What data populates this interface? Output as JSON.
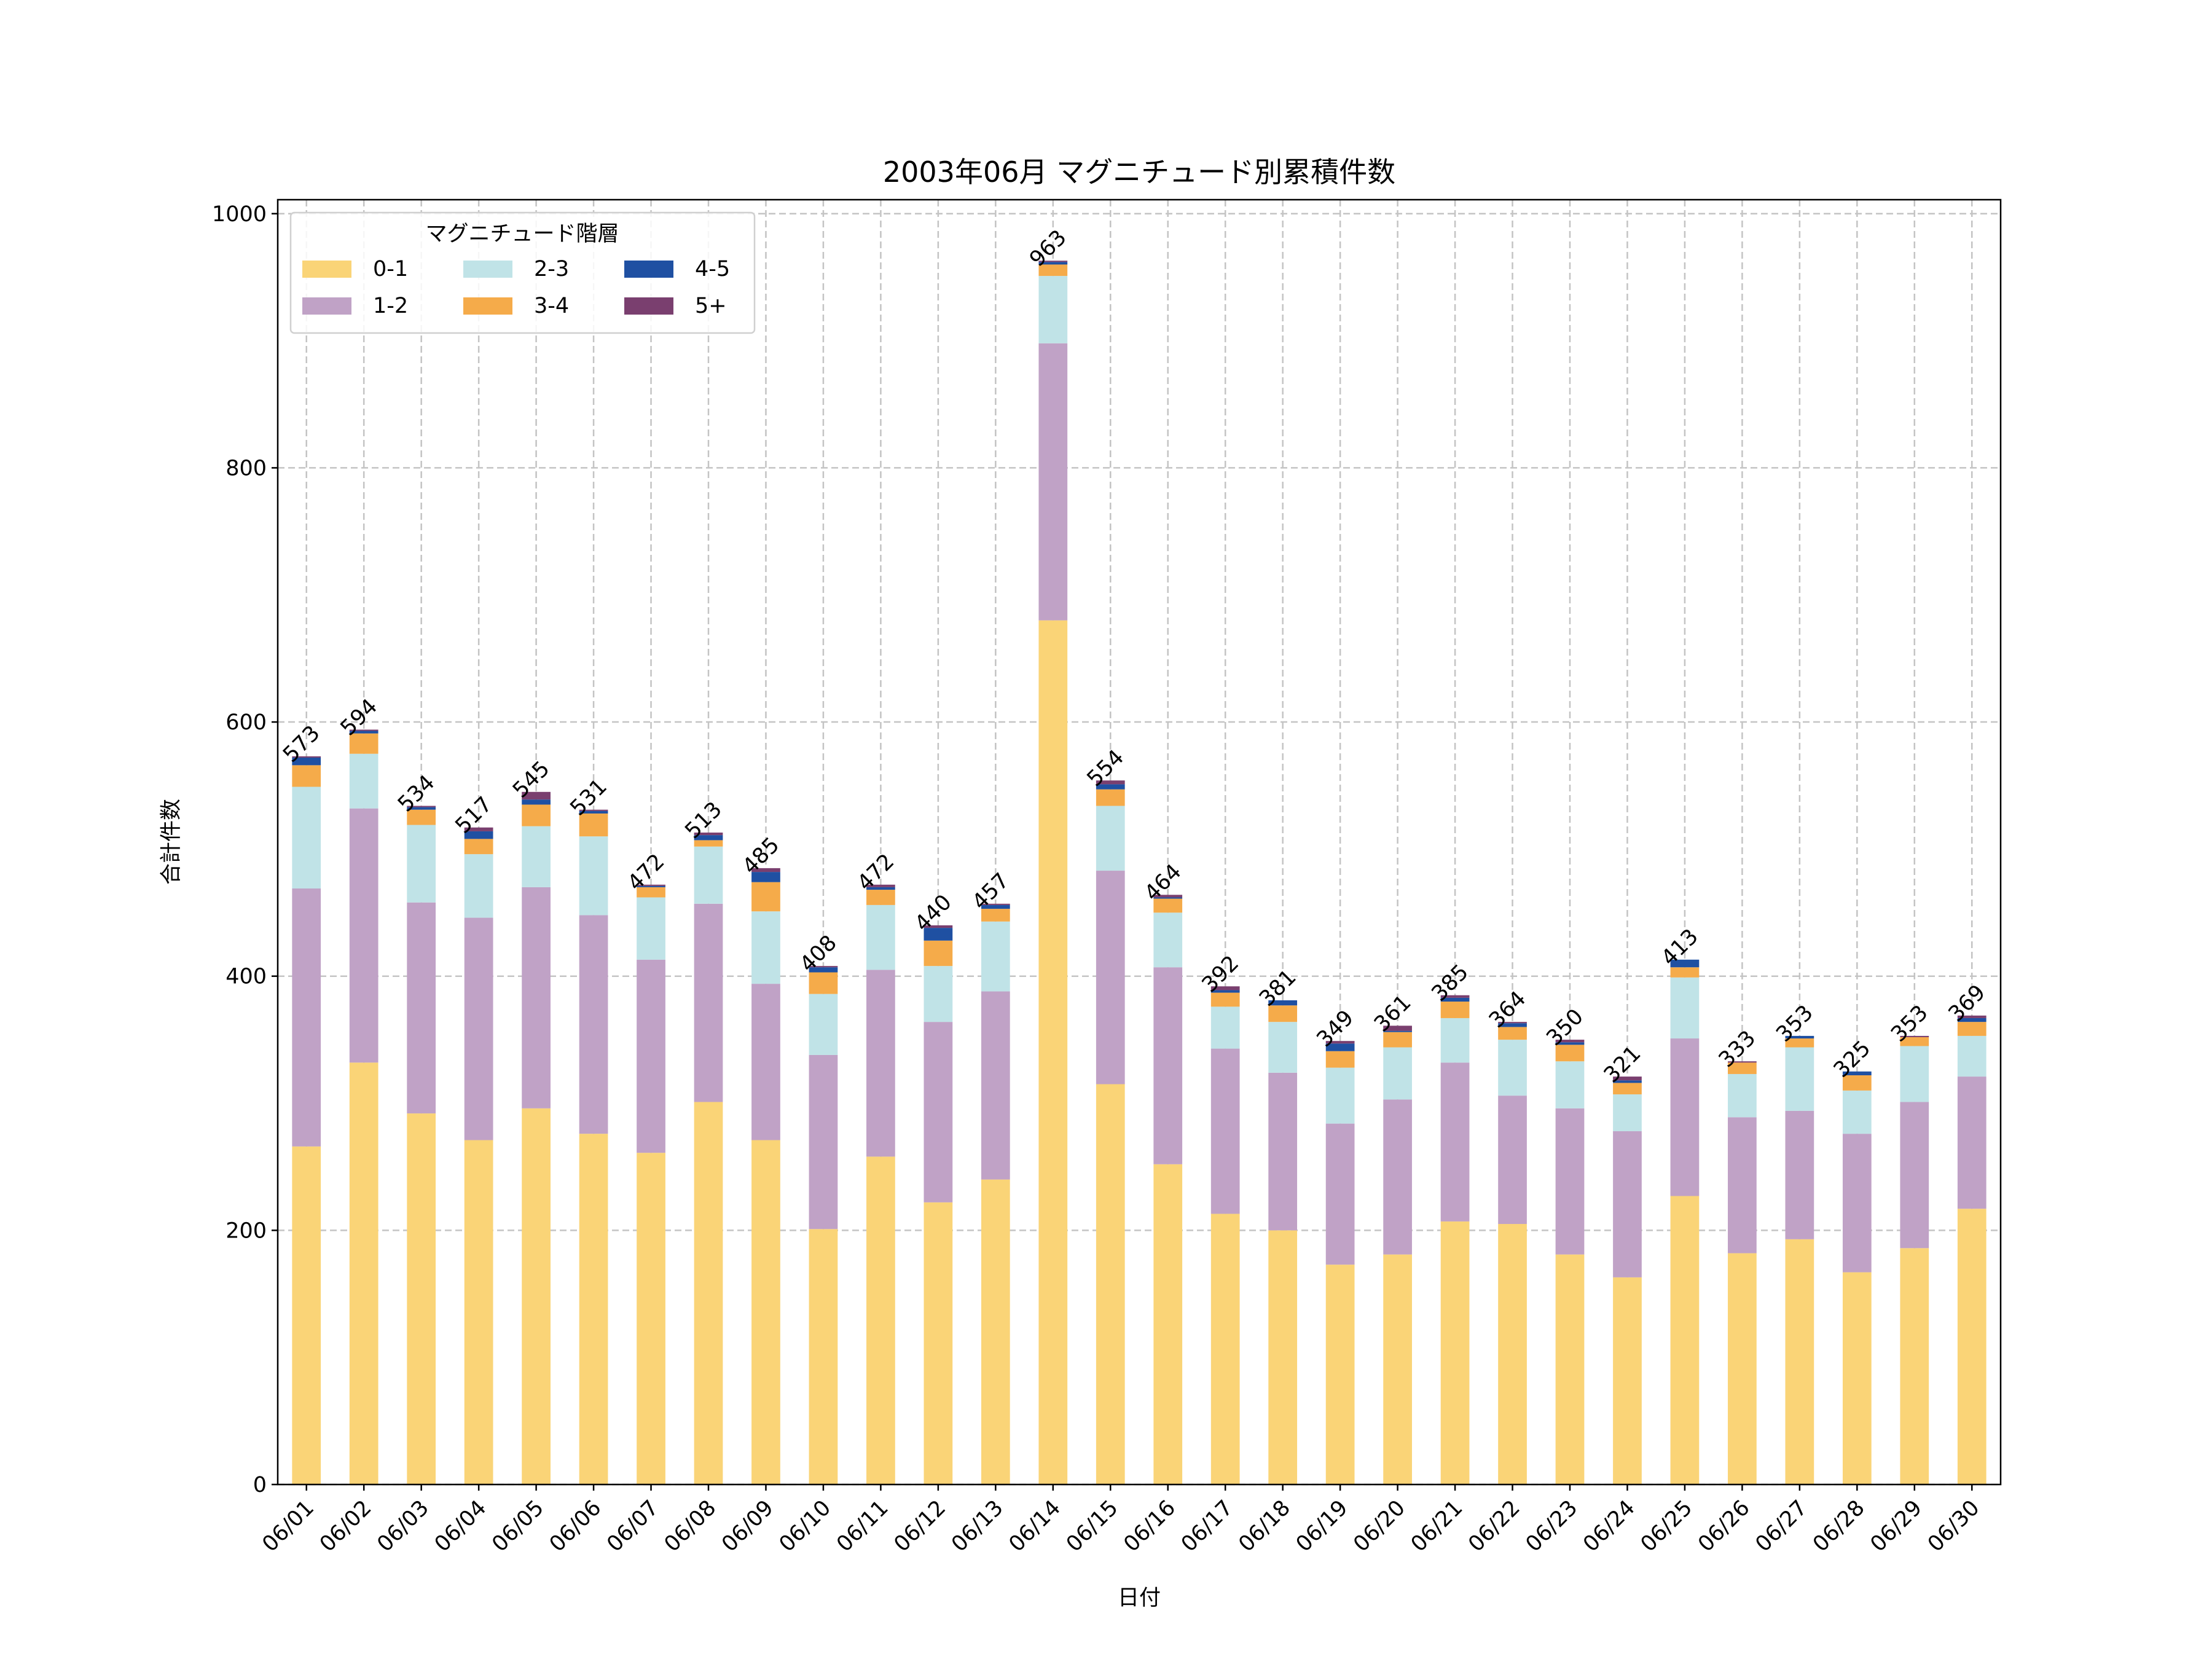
{
  "chart_data": {
    "type": "bar",
    "stacked": true,
    "title": "2003年06月 マグニチュード別累積件数",
    "xlabel": "日付",
    "ylabel": "合計件数",
    "ylim": [
      0,
      1011
    ],
    "yticks": [
      0,
      200,
      400,
      600,
      800,
      1000
    ],
    "grid": true,
    "legend": {
      "title": "マグニチュード階層",
      "placement": "top-left",
      "columns": 3
    },
    "categories": [
      "06/01",
      "06/02",
      "06/03",
      "06/04",
      "06/05",
      "06/06",
      "06/07",
      "06/08",
      "06/09",
      "06/10",
      "06/11",
      "06/12",
      "06/13",
      "06/14",
      "06/15",
      "06/16",
      "06/17",
      "06/18",
      "06/19",
      "06/20",
      "06/21",
      "06/22",
      "06/23",
      "06/24",
      "06/25",
      "06/26",
      "06/27",
      "06/28",
      "06/29",
      "06/30"
    ],
    "series": [
      {
        "name": "0-1",
        "color": "#fad477",
        "values": [
          266,
          332,
          292,
          271,
          296,
          276,
          261,
          301,
          271,
          201,
          258,
          222,
          240,
          680,
          315,
          252,
          213,
          200,
          173,
          181,
          207,
          205,
          181,
          163,
          227,
          182,
          193,
          167,
          186,
          217
        ]
      },
      {
        "name": "1-2",
        "color": "#c0a2c6",
        "values": [
          203,
          200,
          166,
          175,
          174,
          172,
          152,
          156,
          123,
          137,
          147,
          142,
          148,
          218,
          168,
          155,
          130,
          124,
          111,
          122,
          125,
          101,
          115,
          115,
          124,
          107,
          101,
          109,
          115,
          104
        ]
      },
      {
        "name": "2-3",
        "color": "#c0e3e7",
        "values": [
          80,
          43,
          61,
          50,
          48,
          62,
          49,
          45,
          57,
          48,
          51,
          44,
          55,
          53,
          51,
          43,
          33,
          40,
          44,
          41,
          35,
          44,
          37,
          29,
          48,
          34,
          50,
          34,
          44,
          32
        ]
      },
      {
        "name": "3-4",
        "color": "#f5ab4a",
        "values": [
          17,
          16,
          12,
          12,
          17,
          18,
          8,
          5,
          23,
          17,
          12,
          20,
          10,
          9,
          13,
          11,
          11,
          13,
          13,
          12,
          13,
          10,
          13,
          9,
          8,
          9,
          7,
          12,
          7,
          11
        ]
      },
      {
        "name": "4-5",
        "color": "#1f50a2",
        "values": [
          6,
          2,
          2,
          6,
          4,
          2,
          1,
          4,
          8,
          4,
          2,
          10,
          3,
          2,
          4,
          1,
          2,
          4,
          6,
          1,
          3,
          3,
          2,
          2,
          6,
          0,
          2,
          3,
          0,
          3
        ]
      },
      {
        "name": "5+",
        "color": "#7a3f6f",
        "values": [
          1,
          1,
          1,
          3,
          6,
          1,
          1,
          2,
          3,
          1,
          2,
          2,
          1,
          1,
          3,
          2,
          3,
          0,
          2,
          4,
          2,
          1,
          2,
          3,
          0,
          1,
          0,
          0,
          1,
          2
        ]
      }
    ],
    "totals": [
      "573",
      "594",
      "534",
      "517",
      "545",
      "531",
      "472",
      "513",
      "485",
      "408",
      "472",
      "440",
      "457",
      "963",
      "554",
      "464",
      "392",
      "381",
      "349",
      "361",
      "385",
      "364",
      "350",
      "321",
      "413",
      "333",
      "353",
      "325",
      "353",
      "369"
    ]
  }
}
